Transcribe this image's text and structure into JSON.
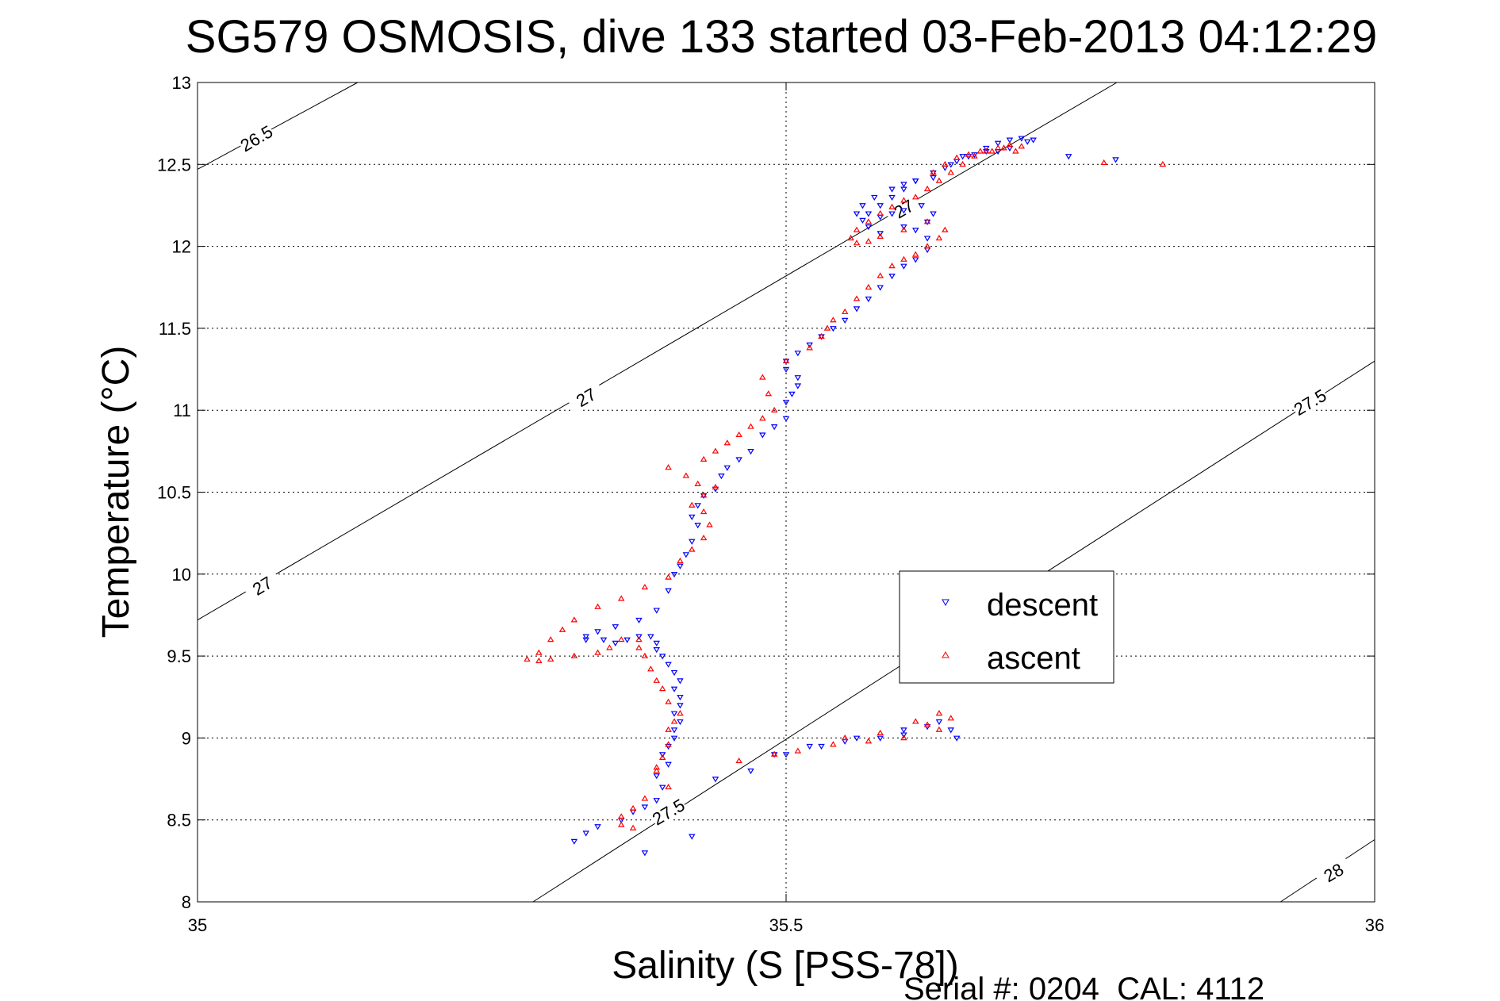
{
  "chart_data": {
    "type": "scatter",
    "title": "SG579 OSMOSIS, dive 133 started 03-Feb-2013 04:12:29",
    "xlabel": "Salinity (S [PSS-78])",
    "ylabel": "Temperature (°C)",
    "xlim": [
      35,
      36
    ],
    "ylim": [
      8,
      13
    ],
    "x_ticks": [
      "35",
      "35.5",
      "36"
    ],
    "y_ticks": [
      "8",
      "8.5",
      "9",
      "9.5",
      "10",
      "10.5",
      "11",
      "11.5",
      "12",
      "12.5",
      "13"
    ],
    "x_tick_values": [
      35,
      35.5,
      36
    ],
    "y_tick_values": [
      8,
      8.5,
      9,
      9.5,
      10,
      10.5,
      11,
      11.5,
      12,
      12.5,
      13
    ],
    "grid": true,
    "legend_position": "center-right",
    "footer": "Serial #: 0204  CAL: 4112",
    "colors": {
      "descent": "#0000ff",
      "ascent": "#ff0000",
      "contour": "#000000"
    },
    "density_contours": [
      {
        "label": "26.5",
        "points": [
          [
            35.0,
            12.47
          ],
          [
            35.136,
            13.0
          ]
        ],
        "labels": [
          {
            "text": "26.5",
            "s": 35.05,
            "t": 12.66
          }
        ]
      },
      {
        "label": "27",
        "points": [
          [
            35.0,
            9.72
          ],
          [
            35.781,
            13.0
          ]
        ],
        "labels": [
          {
            "text": "27",
            "s": 35.055,
            "t": 9.93
          },
          {
            "text": "27",
            "s": 35.33,
            "t": 11.08
          },
          {
            "text": "27",
            "s": 35.6,
            "t": 12.23
          }
        ]
      },
      {
        "label": "27.5",
        "points": [
          [
            35.285,
            8.0
          ],
          [
            36.0,
            11.3
          ]
        ],
        "labels": [
          {
            "text": "27.5",
            "s": 35.4,
            "t": 8.55
          },
          {
            "text": "27.5",
            "s": 35.945,
            "t": 11.05
          }
        ]
      },
      {
        "label": "28",
        "points": [
          [
            35.92,
            8.0
          ],
          [
            36.0,
            8.38
          ]
        ],
        "labels": [
          {
            "text": "28",
            "s": 35.965,
            "t": 8.18
          }
        ]
      }
    ],
    "series": [
      {
        "name": "descent",
        "marker": "triangle-down",
        "points": [
          [
            35.32,
            8.37
          ],
          [
            35.33,
            8.42
          ],
          [
            35.34,
            8.46
          ],
          [
            35.36,
            8.5
          ],
          [
            35.37,
            8.55
          ],
          [
            35.38,
            8.58
          ],
          [
            35.39,
            8.62
          ],
          [
            35.395,
            8.7
          ],
          [
            35.39,
            8.77
          ],
          [
            35.4,
            8.84
          ],
          [
            35.395,
            8.9
          ],
          [
            35.4,
            8.95
          ],
          [
            35.405,
            9.0
          ],
          [
            35.405,
            9.05
          ],
          [
            35.41,
            9.1
          ],
          [
            35.405,
            9.15
          ],
          [
            35.41,
            9.2
          ],
          [
            35.41,
            9.25
          ],
          [
            35.405,
            9.3
          ],
          [
            35.41,
            9.35
          ],
          [
            35.405,
            9.4
          ],
          [
            35.4,
            9.45
          ],
          [
            35.395,
            9.5
          ],
          [
            35.39,
            9.54
          ],
          [
            35.39,
            9.58
          ],
          [
            35.385,
            9.62
          ],
          [
            35.375,
            9.62
          ],
          [
            35.365,
            9.6
          ],
          [
            35.355,
            9.58
          ],
          [
            35.345,
            9.6
          ],
          [
            35.33,
            9.6
          ],
          [
            35.33,
            9.62
          ],
          [
            35.34,
            9.65
          ],
          [
            35.355,
            9.68
          ],
          [
            35.375,
            9.72
          ],
          [
            35.39,
            9.78
          ],
          [
            35.4,
            9.9
          ],
          [
            35.405,
            10.0
          ],
          [
            35.41,
            10.05
          ],
          [
            35.415,
            10.12
          ],
          [
            35.42,
            10.2
          ],
          [
            35.425,
            10.3
          ],
          [
            35.42,
            10.35
          ],
          [
            35.425,
            10.42
          ],
          [
            35.43,
            10.48
          ],
          [
            35.44,
            10.52
          ],
          [
            35.445,
            10.6
          ],
          [
            35.45,
            10.65
          ],
          [
            35.46,
            10.7
          ],
          [
            35.47,
            10.75
          ],
          [
            35.48,
            10.85
          ],
          [
            35.49,
            10.9
          ],
          [
            35.5,
            10.95
          ],
          [
            35.5,
            11.05
          ],
          [
            35.505,
            11.1
          ],
          [
            35.51,
            11.15
          ],
          [
            35.51,
            11.2
          ],
          [
            35.5,
            11.25
          ],
          [
            35.5,
            11.3
          ],
          [
            35.51,
            11.35
          ],
          [
            35.52,
            11.4
          ],
          [
            35.53,
            11.45
          ],
          [
            35.54,
            11.5
          ],
          [
            35.55,
            11.55
          ],
          [
            35.56,
            11.62
          ],
          [
            35.57,
            11.68
          ],
          [
            35.58,
            11.75
          ],
          [
            35.59,
            11.82
          ],
          [
            35.6,
            11.88
          ],
          [
            35.61,
            11.92
          ],
          [
            35.62,
            11.98
          ],
          [
            35.62,
            12.05
          ],
          [
            35.61,
            12.1
          ],
          [
            35.6,
            12.12
          ],
          [
            35.62,
            12.15
          ],
          [
            35.625,
            12.2
          ],
          [
            35.615,
            12.25
          ],
          [
            35.6,
            12.22
          ],
          [
            35.59,
            12.2
          ],
          [
            35.58,
            12.18
          ],
          [
            35.57,
            12.2
          ],
          [
            35.58,
            12.25
          ],
          [
            35.59,
            12.3
          ],
          [
            35.6,
            12.35
          ],
          [
            35.61,
            12.4
          ],
          [
            35.625,
            12.45
          ],
          [
            35.64,
            12.5
          ],
          [
            35.655,
            12.55
          ],
          [
            35.67,
            12.6
          ],
          [
            35.68,
            12.63
          ],
          [
            35.69,
            12.65
          ],
          [
            35.7,
            12.66
          ],
          [
            35.705,
            12.64
          ],
          [
            35.71,
            12.65
          ],
          [
            35.69,
            12.6
          ],
          [
            35.68,
            12.58
          ],
          [
            35.67,
            12.58
          ],
          [
            35.66,
            12.56
          ],
          [
            35.65,
            12.55
          ],
          [
            35.645,
            12.52
          ],
          [
            35.635,
            12.48
          ],
          [
            35.625,
            12.42
          ],
          [
            35.61,
            12.4
          ],
          [
            35.6,
            12.38
          ],
          [
            35.59,
            12.35
          ],
          [
            35.575,
            12.3
          ],
          [
            35.565,
            12.25
          ],
          [
            35.56,
            12.2
          ],
          [
            35.565,
            12.16
          ],
          [
            35.57,
            12.12
          ],
          [
            35.58,
            12.08
          ],
          [
            35.78,
            12.53
          ],
          [
            35.74,
            12.55
          ],
          [
            35.38,
            8.3
          ],
          [
            35.42,
            8.4
          ],
          [
            35.44,
            8.75
          ],
          [
            35.47,
            8.8
          ],
          [
            35.5,
            8.9
          ],
          [
            35.53,
            8.95
          ],
          [
            35.56,
            9.0
          ],
          [
            35.6,
            9.05
          ],
          [
            35.62,
            9.07
          ],
          [
            35.63,
            9.1
          ],
          [
            35.64,
            9.05
          ],
          [
            35.645,
            9.0
          ],
          [
            35.6,
            9.02
          ],
          [
            35.58,
            9.0
          ],
          [
            35.55,
            8.98
          ],
          [
            35.52,
            8.95
          ],
          [
            35.49,
            8.9
          ]
        ]
      },
      {
        "name": "ascent",
        "marker": "triangle-up",
        "points": [
          [
            35.36,
            8.47
          ],
          [
            35.36,
            8.52
          ],
          [
            35.37,
            8.57
          ],
          [
            35.38,
            8.63
          ],
          [
            35.37,
            8.45
          ],
          [
            35.4,
            8.7
          ],
          [
            35.39,
            8.82
          ],
          [
            35.395,
            8.88
          ],
          [
            35.4,
            8.96
          ],
          [
            35.4,
            9.05
          ],
          [
            35.405,
            9.1
          ],
          [
            35.41,
            9.15
          ],
          [
            35.4,
            9.22
          ],
          [
            35.395,
            9.3
          ],
          [
            35.39,
            9.35
          ],
          [
            35.385,
            9.42
          ],
          [
            35.38,
            9.5
          ],
          [
            35.375,
            9.55
          ],
          [
            35.375,
            9.6
          ],
          [
            35.36,
            9.6
          ],
          [
            35.35,
            9.55
          ],
          [
            35.34,
            9.52
          ],
          [
            35.32,
            9.5
          ],
          [
            35.3,
            9.48
          ],
          [
            35.29,
            9.47
          ],
          [
            35.28,
            9.48
          ],
          [
            35.29,
            9.52
          ],
          [
            35.3,
            9.6
          ],
          [
            35.31,
            9.66
          ],
          [
            35.32,
            9.72
          ],
          [
            35.34,
            9.8
          ],
          [
            35.36,
            9.85
          ],
          [
            35.38,
            9.92
          ],
          [
            35.4,
            9.98
          ],
          [
            35.41,
            10.08
          ],
          [
            35.42,
            10.15
          ],
          [
            35.43,
            10.22
          ],
          [
            35.435,
            10.3
          ],
          [
            35.43,
            10.38
          ],
          [
            35.42,
            10.42
          ],
          [
            35.43,
            10.48
          ],
          [
            35.44,
            10.53
          ],
          [
            35.425,
            10.55
          ],
          [
            35.415,
            10.6
          ],
          [
            35.4,
            10.65
          ],
          [
            35.43,
            10.7
          ],
          [
            35.44,
            10.75
          ],
          [
            35.45,
            10.8
          ],
          [
            35.46,
            10.85
          ],
          [
            35.47,
            10.9
          ],
          [
            35.48,
            10.95
          ],
          [
            35.49,
            11.0
          ],
          [
            35.485,
            11.1
          ],
          [
            35.48,
            11.2
          ],
          [
            35.5,
            11.3
          ],
          [
            35.52,
            11.38
          ],
          [
            35.53,
            11.45
          ],
          [
            35.535,
            11.5
          ],
          [
            35.54,
            11.55
          ],
          [
            35.55,
            11.6
          ],
          [
            35.56,
            11.68
          ],
          [
            35.57,
            11.75
          ],
          [
            35.58,
            11.82
          ],
          [
            35.59,
            11.88
          ],
          [
            35.6,
            11.92
          ],
          [
            35.61,
            11.95
          ],
          [
            35.62,
            12.0
          ],
          [
            35.63,
            12.05
          ],
          [
            35.635,
            12.1
          ],
          [
            35.62,
            12.15
          ],
          [
            35.6,
            12.1
          ],
          [
            35.58,
            12.06
          ],
          [
            35.57,
            12.03
          ],
          [
            35.56,
            12.02
          ],
          [
            35.555,
            12.05
          ],
          [
            35.56,
            12.1
          ],
          [
            35.57,
            12.15
          ],
          [
            35.58,
            12.2
          ],
          [
            35.59,
            12.24
          ],
          [
            35.6,
            12.28
          ],
          [
            35.61,
            12.3
          ],
          [
            35.62,
            12.35
          ],
          [
            35.63,
            12.4
          ],
          [
            35.64,
            12.45
          ],
          [
            35.65,
            12.5
          ],
          [
            35.66,
            12.55
          ],
          [
            35.67,
            12.58
          ],
          [
            35.68,
            12.6
          ],
          [
            35.69,
            12.62
          ],
          [
            35.7,
            12.61
          ],
          [
            35.695,
            12.58
          ],
          [
            35.685,
            12.6
          ],
          [
            35.675,
            12.58
          ],
          [
            35.665,
            12.58
          ],
          [
            35.655,
            12.56
          ],
          [
            35.645,
            12.54
          ],
          [
            35.635,
            12.5
          ],
          [
            35.625,
            12.45
          ],
          [
            35.82,
            12.5
          ],
          [
            35.77,
            12.51
          ],
          [
            35.39,
            8.8
          ],
          [
            35.46,
            8.86
          ],
          [
            35.49,
            8.9
          ],
          [
            35.51,
            8.92
          ],
          [
            35.54,
            8.96
          ],
          [
            35.57,
            8.98
          ],
          [
            35.6,
            9.0
          ],
          [
            35.63,
            9.15
          ],
          [
            35.64,
            9.12
          ],
          [
            35.62,
            9.08
          ],
          [
            35.61,
            9.1
          ],
          [
            35.63,
            9.05
          ],
          [
            35.58,
            9.03
          ],
          [
            35.55,
            9.0
          ]
        ]
      }
    ]
  }
}
